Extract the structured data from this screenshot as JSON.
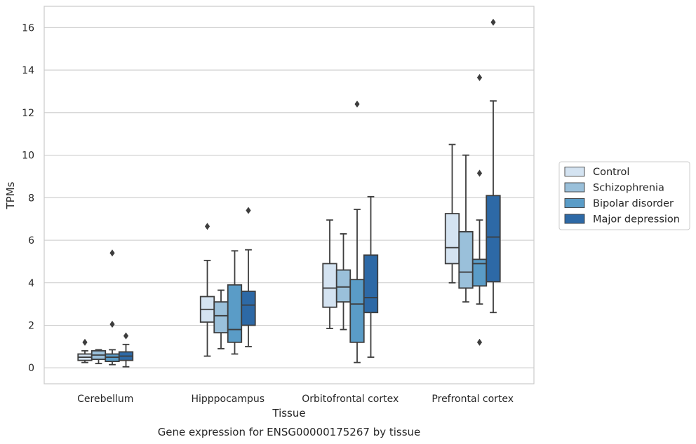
{
  "chart_data": {
    "type": "box",
    "title": "",
    "caption": "Gene expression for ENSG00000175267 by tissue",
    "xlabel": "Tissue",
    "ylabel": "TPMs",
    "ylim": [
      -0.75,
      17
    ],
    "yticks": [
      0,
      2,
      4,
      6,
      8,
      10,
      12,
      14,
      16
    ],
    "grid": "horizontal",
    "legend_position": "right",
    "categories": [
      "Cerebellum",
      "Hipppocampus",
      "Orbitofrontal cortex",
      "Prefrontal cortex"
    ],
    "series": [
      {
        "name": "Control",
        "color": "#d4e3f1",
        "boxes": [
          {
            "whislo": 0.25,
            "q1": 0.35,
            "med": 0.5,
            "q3": 0.65,
            "whishi": 0.8,
            "fliers": [
              1.2
            ]
          },
          {
            "whislo": 0.55,
            "q1": 2.15,
            "med": 2.75,
            "q3": 3.35,
            "whishi": 5.05,
            "fliers": [
              6.65
            ]
          },
          {
            "whislo": 1.85,
            "q1": 2.85,
            "med": 3.75,
            "q3": 4.9,
            "whishi": 6.95,
            "fliers": []
          },
          {
            "whislo": 4.0,
            "q1": 4.9,
            "med": 5.65,
            "q3": 7.25,
            "whishi": 10.5,
            "fliers": []
          }
        ]
      },
      {
        "name": "Schizophrenia",
        "color": "#9ac0da",
        "boxes": [
          {
            "whislo": 0.2,
            "q1": 0.4,
            "med": 0.6,
            "q3": 0.8,
            "whishi": 0.85,
            "fliers": []
          },
          {
            "whislo": 0.9,
            "q1": 1.65,
            "med": 2.45,
            "q3": 3.1,
            "whishi": 3.65,
            "fliers": []
          },
          {
            "whislo": 1.8,
            "q1": 3.1,
            "med": 3.8,
            "q3": 4.6,
            "whishi": 6.3,
            "fliers": []
          },
          {
            "whislo": 3.1,
            "q1": 3.75,
            "med": 4.5,
            "q3": 6.4,
            "whishi": 10.0,
            "fliers": []
          }
        ]
      },
      {
        "name": "Bipolar disorder",
        "color": "#5a9cc7",
        "boxes": [
          {
            "whislo": 0.15,
            "q1": 0.3,
            "med": 0.5,
            "q3": 0.65,
            "whishi": 0.85,
            "fliers": [
              2.05,
              5.4
            ]
          },
          {
            "whislo": 0.65,
            "q1": 1.2,
            "med": 1.8,
            "q3": 3.9,
            "whishi": 5.5,
            "fliers": []
          },
          {
            "whislo": 0.25,
            "q1": 1.2,
            "med": 3.0,
            "q3": 4.15,
            "whishi": 7.45,
            "fliers": [
              12.4
            ]
          },
          {
            "whislo": 3.0,
            "q1": 3.85,
            "med": 4.9,
            "q3": 5.1,
            "whishi": 6.95,
            "fliers": [
              13.65,
              9.15,
              1.2
            ]
          }
        ]
      },
      {
        "name": "Major depression",
        "color": "#2d69a6",
        "boxes": [
          {
            "whislo": 0.05,
            "q1": 0.35,
            "med": 0.55,
            "q3": 0.75,
            "whishi": 1.1,
            "fliers": [
              1.5
            ]
          },
          {
            "whislo": 1.0,
            "q1": 2.0,
            "med": 2.95,
            "q3": 3.6,
            "whishi": 5.55,
            "fliers": [
              7.4
            ]
          },
          {
            "whislo": 0.5,
            "q1": 2.6,
            "med": 3.3,
            "q3": 5.3,
            "whishi": 8.05,
            "fliers": []
          },
          {
            "whislo": 2.6,
            "q1": 4.05,
            "med": 6.15,
            "q3": 8.1,
            "whishi": 12.55,
            "fliers": [
              16.25
            ]
          }
        ]
      }
    ]
  }
}
